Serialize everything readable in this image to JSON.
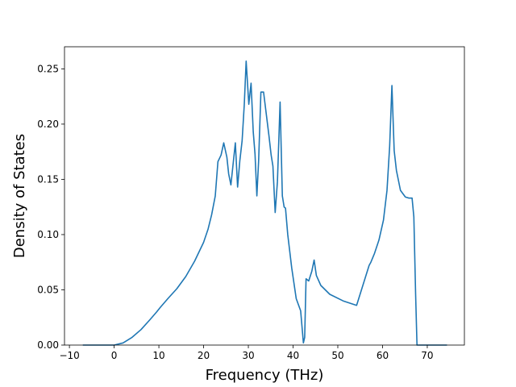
{
  "chart_data": {
    "type": "line",
    "xlabel": "Frequency (THz)",
    "ylabel": "Density of States",
    "xlim": [
      -11.1,
      78.3
    ],
    "ylim": [
      0.0,
      0.27
    ],
    "xticks": [
      -10,
      0,
      10,
      20,
      30,
      40,
      50,
      60,
      70
    ],
    "xtick_labels": [
      "−10",
      "0",
      "10",
      "20",
      "30",
      "40",
      "50",
      "60",
      "70"
    ],
    "yticks": [
      0.0,
      0.05,
      0.1,
      0.15,
      0.2,
      0.25
    ],
    "ytick_labels": [
      "0.00",
      "0.05",
      "0.10",
      "0.15",
      "0.20",
      "0.25"
    ],
    "grid": false,
    "line_color": "#1f77b4",
    "series": [
      {
        "x": [
          -7.0,
          0.0,
          2.0,
          4.0,
          6.0,
          8.0,
          9.5,
          10.3,
          12.0,
          14.0,
          16.0,
          18.0,
          20.0,
          21.0,
          21.8,
          22.6,
          23.2,
          23.9,
          24.5,
          25.2,
          25.6,
          26.1,
          27.1,
          27.6,
          28.1,
          28.6,
          29.1,
          29.5,
          30.1,
          30.6,
          31.1,
          31.5,
          31.9,
          32.3,
          32.8,
          33.4,
          34.6,
          35.1,
          35.5,
          36.0,
          36.5,
          37.1,
          37.6,
          38.0,
          38.3,
          38.8,
          39.7,
          40.7,
          41.7,
          42.3,
          42.6,
          42.9,
          43.5,
          44.2,
          44.7,
          45.2,
          46.2,
          48.2,
          51.2,
          54.2,
          57.0,
          57.4,
          58.2,
          59.2,
          60.2,
          61.0,
          61.6,
          62.1,
          62.6,
          63.1,
          64.0,
          65.1,
          65.9,
          66.6,
          67.0,
          67.4,
          67.7,
          68.0,
          70.2,
          74.4
        ],
        "y": [
          0.0,
          0.0,
          0.002,
          0.007,
          0.014,
          0.023,
          0.03,
          0.034,
          0.042,
          0.051,
          0.062,
          0.076,
          0.093,
          0.105,
          0.118,
          0.135,
          0.166,
          0.172,
          0.183,
          0.17,
          0.155,
          0.145,
          0.183,
          0.143,
          0.167,
          0.185,
          0.218,
          0.257,
          0.218,
          0.237,
          0.193,
          0.173,
          0.135,
          0.167,
          0.229,
          0.229,
          0.19,
          0.172,
          0.162,
          0.12,
          0.148,
          0.22,
          0.135,
          0.125,
          0.124,
          0.1,
          0.07,
          0.042,
          0.031,
          0.002,
          0.007,
          0.06,
          0.058,
          0.067,
          0.077,
          0.063,
          0.054,
          0.046,
          0.04,
          0.036,
          0.072,
          0.075,
          0.083,
          0.095,
          0.113,
          0.14,
          0.18,
          0.235,
          0.176,
          0.158,
          0.14,
          0.134,
          0.133,
          0.133,
          0.116,
          0.046,
          0.0,
          0.0,
          0.0,
          0.0
        ]
      }
    ]
  }
}
